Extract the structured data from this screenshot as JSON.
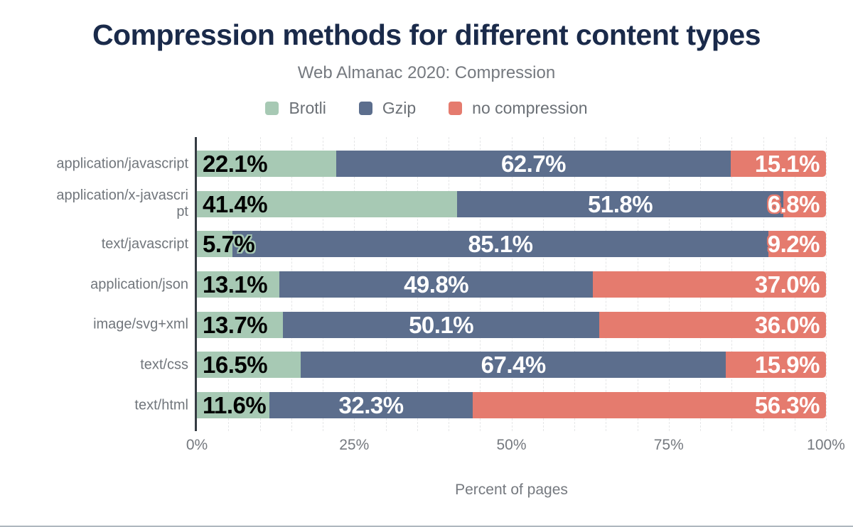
{
  "title": "Compression methods for different content types",
  "subtitle": "Web Almanac 2020: Compression",
  "legend": {
    "items": [
      {
        "label": "Brotli",
        "color": "#a7c9b4"
      },
      {
        "label": "Gzip",
        "color": "#5c6e8d"
      },
      {
        "label": "no compression",
        "color": "#e57b6e"
      }
    ]
  },
  "colors": {
    "title": "#1a2a4a",
    "muted_text": "#75797f",
    "category_text": "#71767c",
    "axis_line": "#353b43",
    "gridline": "#e5e6e7"
  },
  "chart_data": {
    "type": "bar",
    "orientation": "horizontal-stacked",
    "title": "Compression methods for different content types",
    "subtitle": "Web Almanac 2020: Compression",
    "categories": [
      "application/javascript",
      "application/x-javascript",
      "text/javascript",
      "application/json",
      "image/svg+xml",
      "text/css",
      "text/html"
    ],
    "category_display": [
      "application/javascript",
      "application/x-javascri\npt",
      "text/javascript",
      "application/json",
      "image/svg+xml",
      "text/css",
      "text/html"
    ],
    "series": [
      {
        "name": "Brotli",
        "color": "#a7c9b4",
        "label_style": "dark-start",
        "values": [
          22.1,
          41.4,
          5.7,
          13.1,
          13.7,
          16.5,
          11.6
        ]
      },
      {
        "name": "Gzip",
        "color": "#5c6e8d",
        "label_style": "light-center",
        "values": [
          62.7,
          51.8,
          85.1,
          49.8,
          50.1,
          67.4,
          32.3
        ]
      },
      {
        "name": "no compression",
        "color": "#e57b6e",
        "label_style": "light-end",
        "values": [
          15.1,
          6.8,
          9.2,
          37.0,
          36.0,
          15.9,
          56.3
        ]
      }
    ],
    "value_suffix": "%",
    "xlabel": "Percent of pages",
    "x_ticks": [
      "0%",
      "25%",
      "50%",
      "75%",
      "100%"
    ],
    "xlim": [
      0,
      100
    ],
    "grid": "dashed vertical lines every 5%",
    "legend_position": "top-center"
  }
}
